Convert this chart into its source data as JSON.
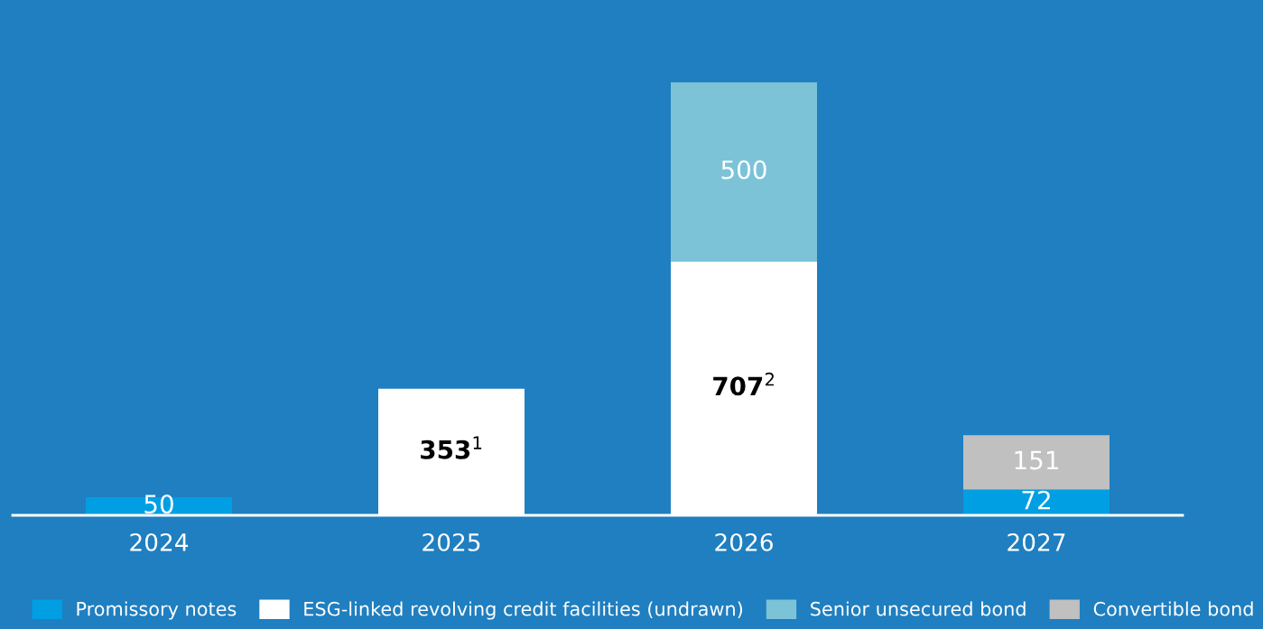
{
  "chart_data": {
    "type": "bar",
    "stacked": true,
    "categories": [
      "2024",
      "2025",
      "2026",
      "2027"
    ],
    "series": [
      {
        "name": "Promissory notes",
        "color": "#009fe3",
        "values": [
          50,
          null,
          null,
          72
        ],
        "value_labels": [
          "50",
          null,
          null,
          "72"
        ]
      },
      {
        "name": "ESG-linked revolving credit facilities (undrawn)",
        "color": "#ffffff",
        "values": [
          null,
          353,
          707,
          null
        ],
        "value_labels": [
          null,
          "353$^{1}$",
          "707$^{2}$",
          null
        ]
      },
      {
        "name": "Senior unsecured bond",
        "color": "#7cc3d8",
        "values": [
          null,
          null,
          500,
          null
        ],
        "value_labels": [
          null,
          null,
          "500",
          null
        ]
      },
      {
        "name": "Convertible bond",
        "color": "#c0c0c0",
        "values": [
          null,
          null,
          null,
          151
        ],
        "value_labels": [
          null,
          null,
          null,
          "151"
        ]
      }
    ],
    "legend": "bottom",
    "grid": false
  }
}
